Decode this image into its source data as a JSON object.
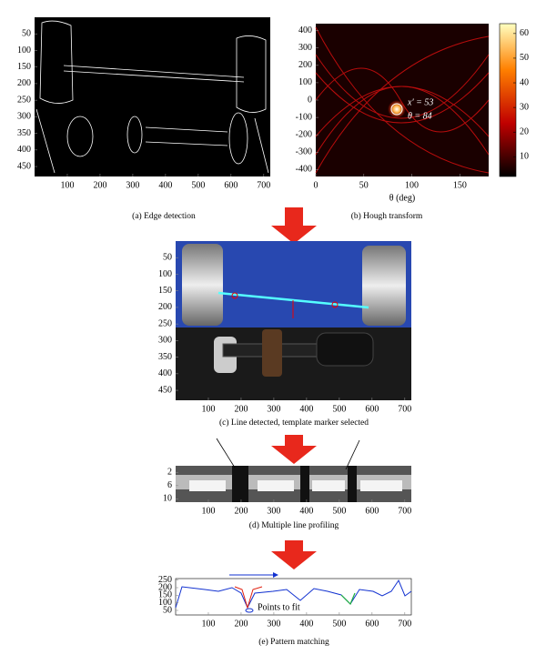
{
  "figure": {
    "panels": [
      {
        "caption": "(a) Edge detection",
        "xlim": [
          0,
          720
        ],
        "ylim": [
          0,
          480
        ],
        "y_inverted": true,
        "xticks": [
          100,
          200,
          300,
          400,
          500,
          600,
          700
        ],
        "yticks": [
          50,
          100,
          150,
          200,
          250,
          300,
          350,
          400,
          450
        ]
      },
      {
        "caption": "(b) Hough transform",
        "xlabel": "θ (deg)",
        "xlim": [
          0,
          180
        ],
        "ylim": [
          -440,
          440
        ],
        "y_inverted": false,
        "xticks": [
          0,
          50,
          100,
          150
        ],
        "yticks": [
          400,
          300,
          200,
          100,
          0,
          -100,
          -200,
          -300,
          -400
        ],
        "annotations": [
          "x′ = 53",
          "θ = 84"
        ],
        "colorbar": {
          "clim": [
            2,
            64
          ],
          "ticks": [
            10,
            20,
            30,
            40,
            50,
            60
          ]
        }
      },
      {
        "caption": "(c) Line detected, template marker selected",
        "xlim": [
          0,
          720
        ],
        "ylim": [
          0,
          480
        ],
        "y_inverted": true,
        "xticks": [
          100,
          200,
          300,
          400,
          500,
          600,
          700
        ],
        "yticks": [
          50,
          100,
          150,
          200,
          250,
          300,
          350,
          400,
          450
        ]
      },
      {
        "caption": "(d) Multiple line profiling",
        "xlim": [
          0,
          720
        ],
        "ylim": [
          0,
          11
        ],
        "y_inverted": true,
        "xticks": [
          100,
          200,
          300,
          400,
          500,
          600,
          700
        ],
        "yticks": [
          2,
          6,
          10
        ]
      },
      {
        "caption": "(e) Pattern matching",
        "xlim": [
          0,
          720
        ],
        "ylim": [
          20,
          260
        ],
        "y_inverted": false,
        "xticks": [
          100,
          200,
          300,
          400,
          500,
          600,
          700
        ],
        "yticks": [
          250,
          200,
          150,
          100,
          50
        ],
        "annotation": "Points to fit"
      }
    ]
  }
}
